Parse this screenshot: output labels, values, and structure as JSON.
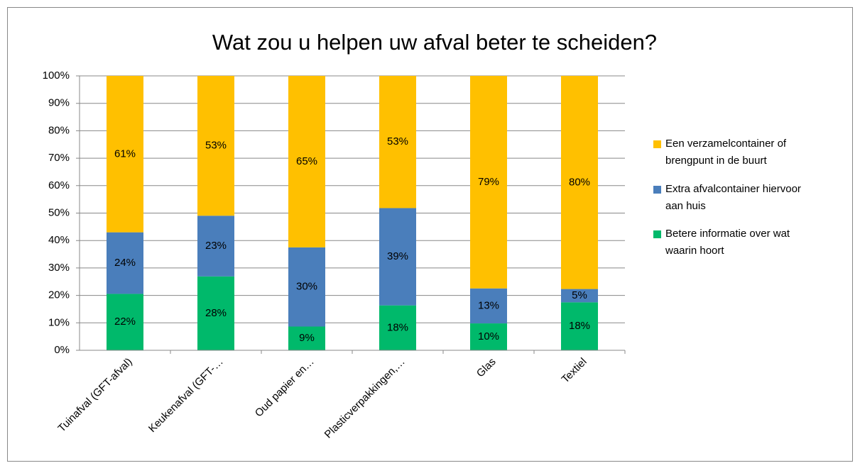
{
  "chart_data": {
    "type": "bar",
    "stacking": "percent",
    "title": "Wat zou u helpen uw afval beter te scheiden?",
    "categories": [
      "Tuinafval (GFT-afval)",
      "Keukenafval (GFT-…",
      "Oud papier en…",
      "Plasticverpakkingen,…",
      "Glas",
      "Textiel"
    ],
    "series": [
      {
        "name": "Betere informatie over wat waarin hoort",
        "color": "#00b96b",
        "values": [
          22,
          28,
          9,
          18,
          10,
          18
        ],
        "value_labels": [
          "22%",
          "28%",
          "9%",
          "18%",
          "10%",
          "18%"
        ]
      },
      {
        "name": "Extra afvalcontainer hiervoor aan huis",
        "color": "#4a7ebb",
        "values": [
          24,
          23,
          30,
          39,
          13,
          5
        ],
        "value_labels": [
          "24%",
          "23%",
          "30%",
          "39%",
          "13%",
          "5%"
        ]
      },
      {
        "name": "Een verzamelcontainer of brengpunt in de buurt",
        "color": "#ffc000",
        "values": [
          61,
          53,
          65,
          53,
          79,
          80
        ],
        "value_labels": [
          "61%",
          "53%",
          "65%",
          "53%",
          "79%",
          "80%"
        ]
      }
    ],
    "ylim": [
      0,
      100
    ],
    "yticks": [
      {
        "value": 0,
        "label": "0%"
      },
      {
        "value": 10,
        "label": "10%"
      },
      {
        "value": 20,
        "label": "20%"
      },
      {
        "value": 30,
        "label": "30%"
      },
      {
        "value": 40,
        "label": "40%"
      },
      {
        "value": 50,
        "label": "50%"
      },
      {
        "value": 60,
        "label": "60%"
      },
      {
        "value": 70,
        "label": "70%"
      },
      {
        "value": 80,
        "label": "80%"
      },
      {
        "value": 90,
        "label": "90%"
      },
      {
        "value": 100,
        "label": "100%"
      }
    ],
    "grid": true,
    "legend": "right"
  }
}
